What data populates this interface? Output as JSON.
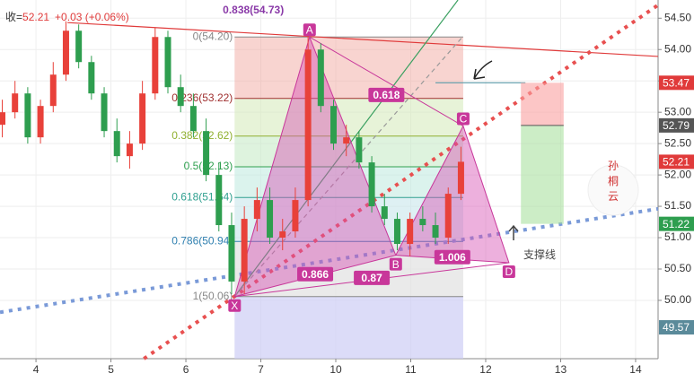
{
  "chart_data": {
    "type": "candlestick",
    "header": {
      "label": "收=",
      "close": 52.21,
      "change": "+0.03 (+0.06%)"
    },
    "xlim": [
      -0.48,
      8.3
    ],
    "xticks": [
      {
        "value": 0,
        "label": "4"
      },
      {
        "value": 1,
        "label": "5"
      },
      {
        "value": 2,
        "label": "6"
      },
      {
        "value": 3,
        "label": "7"
      },
      {
        "value": 4,
        "label": "10"
      },
      {
        "value": 5,
        "label": "11"
      },
      {
        "value": 6,
        "label": "12"
      },
      {
        "value": 7,
        "label": "13"
      },
      {
        "value": 8,
        "label": "14"
      }
    ],
    "ylim": [
      49.07,
      54.79
    ],
    "yticks": [
      {
        "value": 54.5,
        "label": "54.50"
      },
      {
        "value": 54.0,
        "label": "54.00"
      },
      {
        "value": 53.5,
        "label": "53.50"
      },
      {
        "value": 53.0,
        "label": "53.00"
      },
      {
        "value": 52.5,
        "label": "52.50"
      },
      {
        "value": 52.0,
        "label": "52.00"
      },
      {
        "value": 51.5,
        "label": "51.50"
      },
      {
        "value": 51.0,
        "label": "51.00"
      },
      {
        "value": 50.5,
        "label": "50.50"
      },
      {
        "value": 50.0,
        "label": "50.00"
      }
    ],
    "up_color": "#e8413a",
    "down_color": "#2e9e4f",
    "x": [
      -0.45,
      -0.28,
      -0.11,
      0.06,
      0.23,
      0.4,
      0.57,
      0.74,
      0.91,
      1.08,
      1.25,
      1.42,
      1.59,
      1.76,
      1.93,
      2.1,
      2.27,
      2.44,
      2.61,
      2.78,
      2.95,
      3.12,
      3.29,
      3.46,
      3.63,
      3.8,
      3.97,
      4.14,
      4.31,
      4.48,
      4.65,
      4.82,
      4.99,
      5.16,
      5.33,
      5.5,
      5.67
    ],
    "open": [
      52.8,
      53.0,
      53.3,
      52.6,
      53.1,
      53.6,
      54.3,
      53.8,
      53.3,
      52.7,
      52.3,
      52.5,
      53.3,
      54.2,
      53.4,
      53.1,
      52.7,
      52.0,
      51.2,
      50.3,
      51.3,
      51.6,
      51.0,
      51.1,
      51.6,
      54.0,
      53.1,
      52.5,
      52.6,
      52.2,
      51.5,
      51.3,
      50.9,
      51.3,
      51.2,
      51.0,
      51.7
    ],
    "high": [
      53.2,
      53.5,
      53.4,
      53.2,
      53.8,
      54.45,
      54.4,
      53.9,
      53.4,
      52.9,
      52.7,
      53.5,
      54.35,
      54.3,
      53.6,
      53.3,
      52.9,
      52.2,
      51.4,
      51.5,
      51.8,
      51.8,
      51.3,
      51.8,
      54.25,
      54.1,
      53.2,
      52.8,
      52.7,
      52.3,
      51.7,
      51.4,
      51.4,
      51.5,
      51.4,
      51.8,
      52.45
    ],
    "low": [
      52.6,
      52.9,
      52.5,
      52.5,
      53.0,
      53.5,
      53.7,
      53.2,
      52.6,
      52.2,
      52.1,
      52.4,
      53.2,
      53.3,
      53.0,
      52.6,
      51.9,
      51.1,
      50.1,
      50.1,
      51.1,
      50.9,
      50.8,
      51.0,
      51.5,
      53.0,
      52.4,
      52.3,
      52.1,
      51.4,
      51.2,
      50.8,
      50.7,
      51.1,
      50.9,
      50.9,
      51.6
    ],
    "close": [
      53.0,
      53.3,
      52.6,
      53.1,
      53.6,
      54.3,
      53.8,
      53.3,
      52.7,
      52.3,
      52.5,
      53.3,
      54.2,
      53.4,
      53.1,
      52.7,
      52.0,
      51.2,
      50.3,
      51.3,
      51.6,
      51.0,
      51.1,
      51.6,
      54.0,
      53.1,
      52.5,
      52.6,
      52.2,
      51.5,
      51.3,
      50.9,
      51.3,
      51.2,
      51.0,
      51.7,
      52.21
    ],
    "fib_range": [
      2.65,
      5.7
    ],
    "fib_levels": [
      {
        "label": "0(54.20)",
        "price": 54.2,
        "color": "#888888",
        "band": "rgba(240,160,150,0.45)"
      },
      {
        "label": "0.236(53.22)",
        "price": 53.22,
        "color": "#a03030",
        "band": "rgba(215,235,190,0.6)"
      },
      {
        "label": "0.382(52.62)",
        "price": 52.62,
        "color": "#90b030",
        "band": "rgba(200,235,200,0.6)"
      },
      {
        "label": "0.5(52.13)",
        "price": 52.13,
        "color": "#30a050",
        "band": "rgba(195,235,225,0.6)"
      },
      {
        "label": "0.618(51.64)",
        "price": 51.64,
        "color": "#30a090",
        "band": "rgba(200,230,235,0.6)"
      },
      {
        "label": "0.786(50.94)",
        "price": 50.94,
        "color": "#3080b0",
        "band": "rgba(225,225,225,0.7)"
      },
      {
        "label": "1(50.06)",
        "price": 50.06,
        "color": "#888888",
        "band": "rgba(205,205,245,0.7)"
      }
    ],
    "annotations": [
      {
        "text": "0.838(54.73)",
        "x": 2.9,
        "y": 54.62,
        "color": "#8a3aa8"
      }
    ],
    "pattern": {
      "color": "#c8379a",
      "points": [
        {
          "label": "X",
          "x": 2.65,
          "y": 50.06
        },
        {
          "label": "A",
          "x": 3.65,
          "y": 54.2
        },
        {
          "label": "B",
          "x": 4.8,
          "y": 50.72
        },
        {
          "label": "C",
          "x": 5.7,
          "y": 52.78
        },
        {
          "label": "D",
          "x": 6.31,
          "y": 50.6
        }
      ],
      "ratios": [
        "0.618",
        "0.866",
        "0.87",
        "1.006"
      ]
    },
    "lines": [
      {
        "color": "#e03a3a",
        "style": "solid",
        "x": [
          0.42,
          8.3
        ],
        "y": [
          54.43,
          53.89
        ]
      },
      {
        "color": "#e85050",
        "style": "dotted",
        "x": [
          1.44,
          8.3
        ],
        "y": [
          49.07,
          54.71
        ]
      },
      {
        "color": "#7a9ad8",
        "style": "dotted",
        "x": [
          -0.48,
          8.3
        ],
        "y": [
          49.81,
          51.46
        ]
      },
      {
        "color": "#3aa060",
        "style": "solid",
        "x": [
          2.65,
          5.63
        ],
        "y": [
          50.06,
          54.79
        ]
      },
      {
        "color": "#999999",
        "style": "dashed",
        "x": [
          2.65,
          5.69
        ],
        "y": [
          50.06,
          54.2
        ]
      },
      {
        "color": "#5a9aa8",
        "style": "solid",
        "x": [
          5.33,
          6.53
        ],
        "y": [
          53.47,
          53.47
        ]
      }
    ],
    "position": {
      "x": [
        6.47,
        7.04
      ],
      "target": 53.47,
      "entry": 52.79,
      "stop": 51.22
    },
    "price_labels": [
      {
        "value": 53.47,
        "color": "#e03a3a"
      },
      {
        "value": 52.79,
        "color": "#555555"
      },
      {
        "value": 52.21,
        "color": "#e03a3a"
      },
      {
        "value": 51.22,
        "color": "#2e9e4f"
      },
      {
        "value": 49.57,
        "color": "#5a8a9a"
      }
    ],
    "support_label": "支撑线",
    "watermark": "孙桐云"
  }
}
